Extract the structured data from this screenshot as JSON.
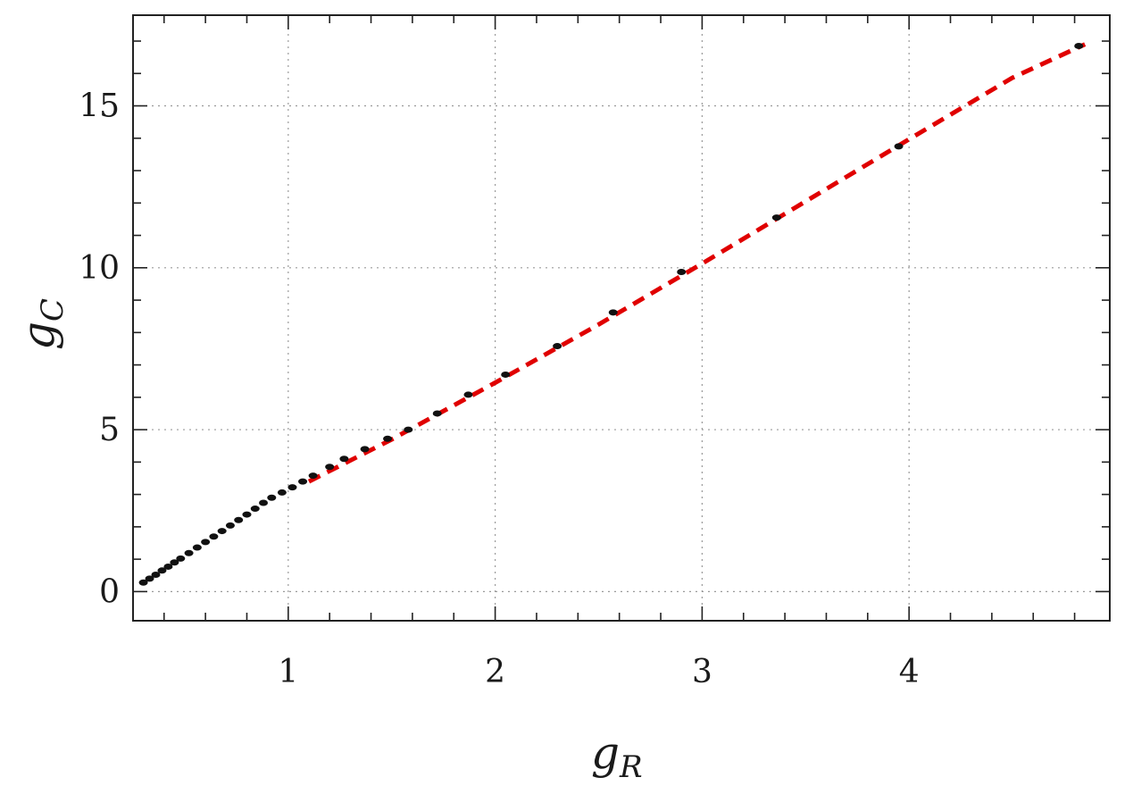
{
  "chart_data": {
    "type": "scatter",
    "title": "",
    "xlabel": {
      "main": "g",
      "sub": "R"
    },
    "ylabel": {
      "main": "g",
      "sub": "C"
    },
    "xlim": [
      0.25,
      4.97
    ],
    "ylim": [
      -0.9,
      17.8
    ],
    "x_ticks": [
      1,
      2,
      3,
      4
    ],
    "x_tick_labels": [
      "1",
      "2",
      "3",
      "4"
    ],
    "y_ticks": [
      0,
      5,
      10,
      15
    ],
    "y_tick_labels": [
      "0",
      "5",
      "10",
      "15"
    ],
    "x_minor_step": 0.2,
    "y_minor_step": 1,
    "grid": true,
    "colors": {
      "points": "#111111",
      "fit_line": "#e00000",
      "grid": "#9a9a9a",
      "frame": "#222222"
    },
    "series": [
      {
        "kind": "points",
        "x": [
          0.3,
          0.33,
          0.36,
          0.39,
          0.42,
          0.45,
          0.48,
          0.52,
          0.56,
          0.6,
          0.64,
          0.68,
          0.72,
          0.76,
          0.8,
          0.84,
          0.88,
          0.92,
          0.97,
          1.02,
          1.07,
          1.12,
          1.2,
          1.27,
          1.37,
          1.48,
          1.58,
          1.72,
          1.87,
          2.05,
          2.3,
          2.57,
          2.9,
          3.36,
          3.95,
          4.82
        ],
        "y": [
          0.28,
          0.4,
          0.52,
          0.65,
          0.77,
          0.9,
          1.02,
          1.19,
          1.36,
          1.53,
          1.7,
          1.87,
          2.04,
          2.21,
          2.38,
          2.56,
          2.74,
          2.9,
          3.06,
          3.22,
          3.4,
          3.58,
          3.85,
          4.1,
          4.4,
          4.72,
          5.0,
          5.5,
          6.08,
          6.7,
          7.58,
          8.62,
          9.87,
          11.55,
          13.75,
          16.85
        ]
      },
      {
        "kind": "fit",
        "x": [
          1.1,
          1.5,
          2.0,
          2.5,
          3.0,
          3.5,
          4.0,
          4.5,
          4.85
        ],
        "y": [
          3.4,
          4.7,
          6.45,
          8.25,
          10.13,
          12.05,
          13.97,
          15.87,
          16.9
        ]
      }
    ]
  }
}
